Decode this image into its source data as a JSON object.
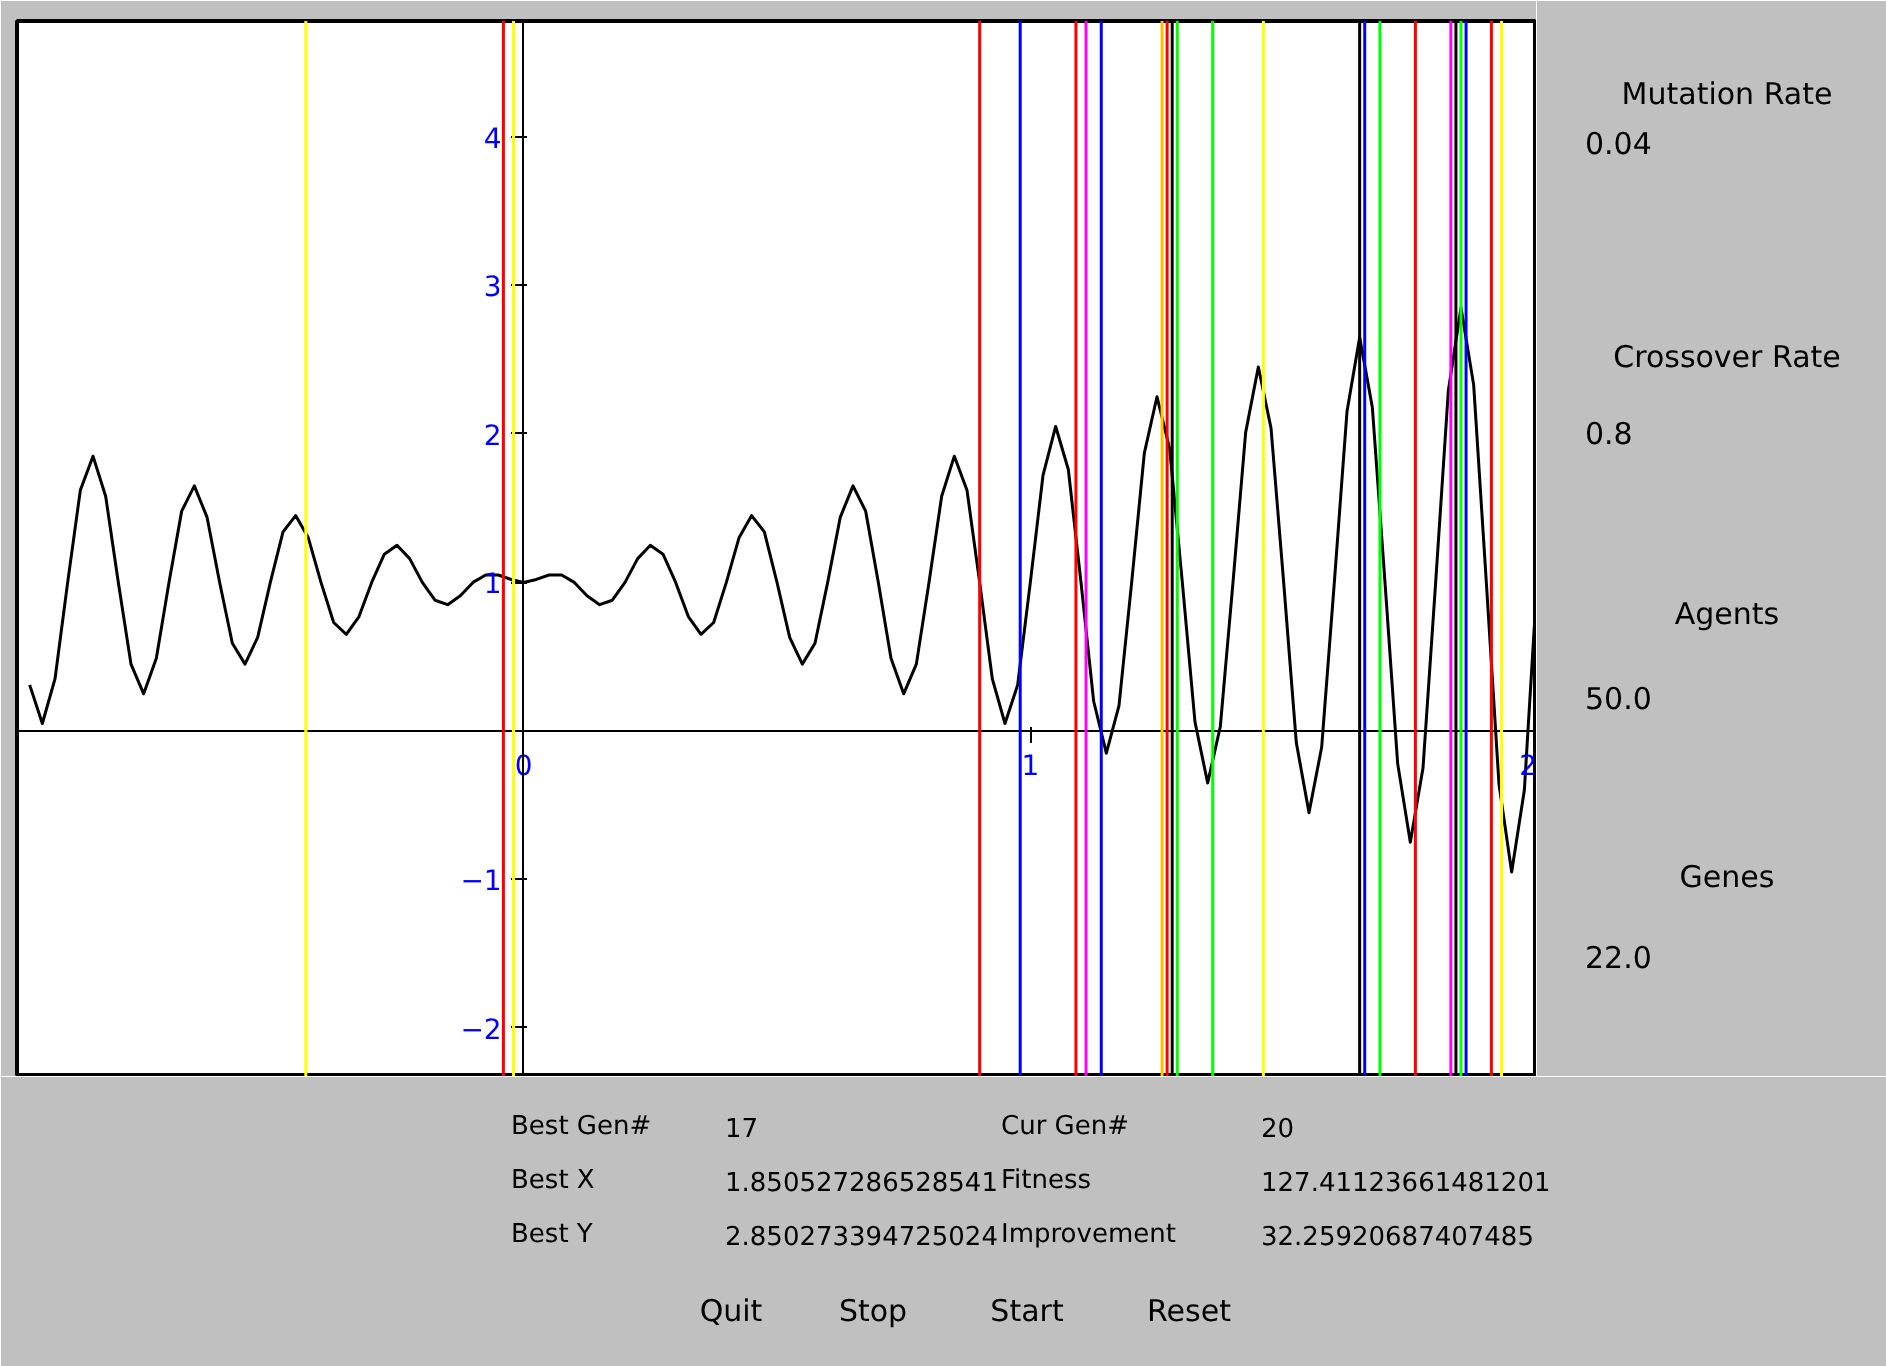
{
  "chart_data": {
    "type": "line",
    "xlim": [
      -1,
      2
    ],
    "ylim": [
      -2.33,
      4.78
    ],
    "xticks": [
      0,
      1,
      2
    ],
    "yticks": [
      -2,
      -1,
      1,
      2,
      3,
      4
    ],
    "marker": "none",
    "x": [
      -0.975,
      -0.95,
      -0.925,
      -0.9,
      -0.875,
      -0.85,
      -0.825,
      -0.8,
      -0.775,
      -0.75,
      -0.725,
      -0.7,
      -0.675,
      -0.65,
      -0.625,
      -0.6,
      -0.575,
      -0.55,
      -0.525,
      -0.5,
      -0.475,
      -0.45,
      -0.425,
      -0.4,
      -0.375,
      -0.35,
      -0.325,
      -0.3,
      -0.275,
      -0.25,
      -0.225,
      -0.2,
      -0.175,
      -0.15,
      -0.125,
      -0.1,
      -0.075,
      -0.05,
      -0.025,
      0,
      0.025,
      0.05,
      0.075,
      0.1,
      0.125,
      0.15,
      0.175,
      0.2,
      0.225,
      0.25,
      0.275,
      0.3,
      0.325,
      0.35,
      0.375,
      0.4,
      0.425,
      0.45,
      0.475,
      0.5,
      0.525,
      0.55,
      0.575,
      0.6,
      0.625,
      0.65,
      0.675,
      0.7,
      0.725,
      0.75,
      0.775,
      0.8,
      0.825,
      0.85,
      0.875,
      0.9,
      0.925,
      0.95,
      0.975,
      1.0,
      1.025,
      1.05,
      1.075,
      1.1,
      1.125,
      1.15,
      1.175,
      1.2,
      1.225,
      1.25,
      1.275,
      1.3,
      1.325,
      1.35,
      1.375,
      1.4,
      1.425,
      1.45,
      1.475,
      1.5,
      1.525,
      1.55,
      1.575,
      1.6,
      1.625,
      1.65,
      1.675,
      1.7,
      1.725,
      1.75,
      1.775,
      1.8,
      1.825,
      1.85,
      1.875,
      1.9,
      1.925,
      1.95,
      1.975,
      2.0
    ],
    "series": [
      {
        "color": "#000000",
        "values": [
          0.31,
          0.05,
          0.35,
          1,
          1.62,
          1.85,
          1.58,
          1,
          0.45,
          0.25,
          0.49,
          1,
          1.48,
          1.65,
          1.44,
          1,
          0.59,
          0.45,
          0.63,
          1,
          1.34,
          1.45,
          1.3,
          1,
          0.73,
          0.65,
          0.77,
          1,
          1.19,
          1.25,
          1.16,
          1,
          0.88,
          0.85,
          0.91,
          1,
          1.05,
          1.05,
          1.02,
          1,
          1.02,
          1.05,
          1.05,
          1,
          0.91,
          0.85,
          0.88,
          1,
          1.16,
          1.25,
          1.19,
          1,
          0.77,
          0.65,
          0.73,
          1,
          1.3,
          1.45,
          1.34,
          1,
          0.63,
          0.45,
          0.59,
          1,
          1.44,
          1.65,
          1.48,
          1,
          0.49,
          0.25,
          0.45,
          1,
          1.58,
          1.85,
          1.62,
          1,
          0.35,
          0.05,
          0.31,
          1,
          1.72,
          2.05,
          1.76,
          1,
          0.2,
          -0.15,
          0.17,
          1,
          1.87,
          2.25,
          1.9,
          1,
          0.06,
          -0.35,
          0.03,
          1,
          2.01,
          2.45,
          2.04,
          1,
          -0.08,
          -0.55,
          -0.11,
          1,
          2.15,
          2.65,
          2.18,
          1,
          -0.22,
          -0.75,
          -0.25,
          1,
          2.29,
          2.85,
          2.33,
          1,
          -0.36,
          -0.95,
          -0.4,
          1
        ]
      }
    ],
    "ref_lines": [
      {
        "axis": "x",
        "value": -0.43,
        "color": "#ffff00"
      },
      {
        "axis": "x",
        "value": -0.04,
        "color": "#ff0000"
      },
      {
        "axis": "x",
        "value": -0.02,
        "color": "#ffff00"
      },
      {
        "axis": "x",
        "value": 0.9,
        "color": "#ff0000"
      },
      {
        "axis": "x",
        "value": 0.98,
        "color": "#0000ff"
      },
      {
        "axis": "x",
        "value": 1.09,
        "color": "#ff0000"
      },
      {
        "axis": "x",
        "value": 1.11,
        "color": "#ff00ff"
      },
      {
        "axis": "x",
        "value": 1.14,
        "color": "#0000ff"
      },
      {
        "axis": "x",
        "value": 1.26,
        "color": "#ffc000"
      },
      {
        "axis": "x",
        "value": 1.27,
        "color": "#ff0000"
      },
      {
        "axis": "x",
        "value": 1.28,
        "color": "#000000"
      },
      {
        "axis": "x",
        "value": 1.29,
        "color": "#00ff00"
      },
      {
        "axis": "x",
        "value": 1.36,
        "color": "#00ff00"
      },
      {
        "axis": "x",
        "value": 1.46,
        "color": "#ffff00"
      },
      {
        "axis": "x",
        "value": 1.65,
        "color": "#000000"
      },
      {
        "axis": "x",
        "value": 1.66,
        "color": "#0000ff"
      },
      {
        "axis": "x",
        "value": 1.69,
        "color": "#00ff00"
      },
      {
        "axis": "x",
        "value": 1.76,
        "color": "#ff0000"
      },
      {
        "axis": "x",
        "value": 1.83,
        "color": "#ff00ff"
      },
      {
        "axis": "x",
        "value": 1.84,
        "color": "#000000"
      },
      {
        "axis": "x",
        "value": 1.85,
        "color": "#00ff00"
      },
      {
        "axis": "x",
        "value": 1.86,
        "color": "#0000ff"
      },
      {
        "axis": "x",
        "value": 1.91,
        "color": "#ff0000"
      },
      {
        "axis": "x",
        "value": 1.93,
        "color": "#ffff00"
      }
    ],
    "annotations": [
      "Mutation Rate",
      "0.04",
      "Crossover Rate",
      "0.8",
      "Agents",
      "50.0",
      "Genes",
      "22.0",
      "Best Gen#",
      "17",
      "Cur Gen#",
      "20",
      "Best X",
      "1.850527286528541",
      "Fitness",
      "127.41123661481201",
      "Best Y",
      "2.850273394725024",
      "Improvement",
      "32.25920687407485",
      "Quit",
      "Stop",
      "Start",
      "Reset"
    ]
  }
}
